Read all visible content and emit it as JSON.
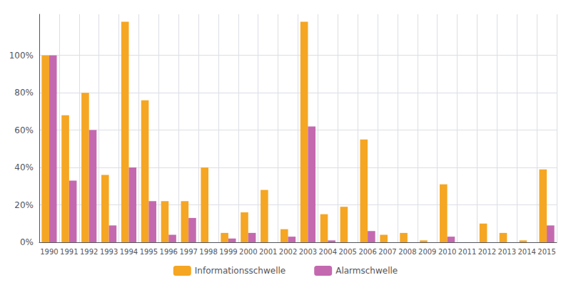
{
  "chart_data": {
    "type": "bar",
    "categories": [
      "1990",
      "1991",
      "1992",
      "1993",
      "1994",
      "1995",
      "1996",
      "1997",
      "1998",
      "1999",
      "2000",
      "2001",
      "2002",
      "2003",
      "2004",
      "2005",
      "2006",
      "2007",
      "2008",
      "2009",
      "2010",
      "2011",
      "2012",
      "2013",
      "2014",
      "2015"
    ],
    "series": [
      {
        "name": "Informationsschwelle",
        "color": "#F5A623",
        "values": [
          100,
          68,
          80,
          36,
          118,
          76,
          22,
          22,
          40,
          5,
          16,
          28,
          7,
          118,
          15,
          19,
          55,
          4,
          5,
          1,
          31,
          0,
          10,
          5,
          1,
          39
        ]
      },
      {
        "name": "Alarmschwelle",
        "color": "#C469B0",
        "values": [
          100,
          33,
          60,
          9,
          40,
          22,
          4,
          13,
          0,
          2,
          5,
          0,
          3,
          62,
          1,
          0,
          6,
          0,
          0,
          0,
          3,
          0,
          0,
          0,
          0,
          9
        ]
      }
    ],
    "ylim": [
      0,
      122
    ],
    "yticks": [
      {
        "value": 0,
        "label": "0%"
      },
      {
        "value": 20,
        "label": "20%"
      },
      {
        "value": 40,
        "label": "40%"
      },
      {
        "value": 60,
        "label": "60%"
      },
      {
        "value": 80,
        "label": "80%"
      },
      {
        "value": 100,
        "label": "100%"
      }
    ],
    "grid": true,
    "legend": "bottom"
  }
}
